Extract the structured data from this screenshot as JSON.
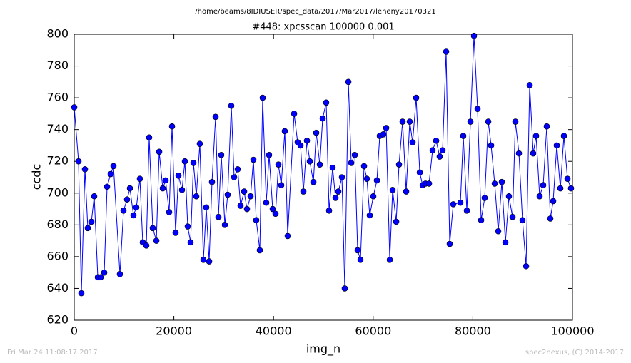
{
  "chart_data": {
    "type": "line",
    "suptitle": "/home/beams/8IDIUSER/spec_data/2017/Mar2017/leheny20170321",
    "title": "#448: xpcsscan 100000 0.001",
    "xlabel": "img_n",
    "ylabel": "ccdc",
    "footer_left": "Fri Mar 24 11:08:17 2017",
    "footer_right": "spec2nexus, (C) 2014-2017",
    "xlim": [
      0,
      100000
    ],
    "xticks": [
      0,
      20000,
      40000,
      60000,
      80000,
      100000
    ],
    "ylim": [
      620,
      800
    ],
    "yticks": [
      620,
      640,
      660,
      680,
      700,
      720,
      740,
      760,
      780,
      800
    ],
    "x": [
      0,
      860,
      1430,
      2150,
      2720,
      3440,
      4010,
      4730,
      5300,
      6020,
      6590,
      7310,
      7880,
      9170,
      9890,
      10600,
      11180,
      11890,
      12460,
      13180,
      13750,
      14470,
      15040,
      15760,
      16480,
      17050,
      17770,
      18340,
      19050,
      19630,
      20340,
      20920,
      21630,
      22210,
      22780,
      23350,
      23930,
      24500,
      25210,
      25930,
      26500,
      27080,
      27650,
      28370,
      28940,
      29510,
      30230,
      30800,
      31520,
      32090,
      32810,
      33380,
      34100,
      34670,
      35390,
      35960,
      36530,
      37250,
      37820,
      38540,
      39110,
      39830,
      40400,
      40980,
      41550,
      42260,
      42840,
      44130,
      44840,
      45420,
      45990,
      46710,
      47280,
      48000,
      48570,
      49290,
      49860,
      50570,
      51150,
      51860,
      52440,
      53010,
      53730,
      54300,
      55020,
      55590,
      56310,
      56880,
      57450,
      58170,
      58740,
      59310,
      60030,
      60750,
      61320,
      62040,
      62610,
      63330,
      63900,
      64620,
      65190,
      65900,
      66620,
      67340,
      67910,
      68630,
      69350,
      69920,
      70490,
      71210,
      71920,
      72640,
      73350,
      73930,
      74640,
      75360,
      76070,
      77510,
      78080,
      78800,
      79520,
      80230,
      80950,
      81670,
      82380,
      83100,
      83670,
      84390,
      85100,
      85820,
      86540,
      87250,
      87970,
      88540,
      89260,
      89970,
      90690,
      91410,
      92120,
      92700,
      93410,
      94130,
      94840,
      95560,
      96130,
      96850,
      97570,
      98280,
      99000,
      99710
    ],
    "series": [
      {
        "name": "ccdc",
        "color": "#0000ff",
        "values": [
          754,
          720,
          637,
          715,
          678,
          682,
          698,
          647,
          647,
          650,
          704,
          712,
          717,
          649,
          689,
          696,
          703,
          686,
          691,
          709,
          669,
          667,
          735,
          678,
          670,
          726,
          703,
          708,
          688,
          742,
          675,
          711,
          702,
          720,
          679,
          669,
          719,
          698,
          731,
          658,
          691,
          657,
          707,
          748,
          685,
          724,
          680,
          699,
          755,
          710,
          715,
          692,
          701,
          690,
          698,
          721,
          683,
          664,
          760,
          694,
          724,
          690,
          687,
          718,
          705,
          739,
          673,
          750,
          732,
          730,
          701,
          733,
          720,
          707,
          738,
          718,
          747,
          757,
          689,
          716,
          697,
          701,
          710,
          640,
          770,
          719,
          724,
          664,
          658,
          717,
          709,
          686,
          698,
          708,
          736,
          737,
          741,
          658,
          702,
          682,
          718,
          745,
          701,
          745,
          732,
          760,
          713,
          705,
          706,
          706,
          727,
          733,
          723,
          727,
          789,
          668,
          693,
          694,
          736,
          689,
          745,
          799,
          753,
          683,
          697,
          745,
          730,
          706,
          676,
          707,
          669,
          698,
          685,
          745,
          725,
          683,
          654,
          768,
          725,
          736,
          698,
          705,
          742,
          684,
          695,
          730,
          703,
          736,
          709,
          703
        ]
      }
    ]
  }
}
